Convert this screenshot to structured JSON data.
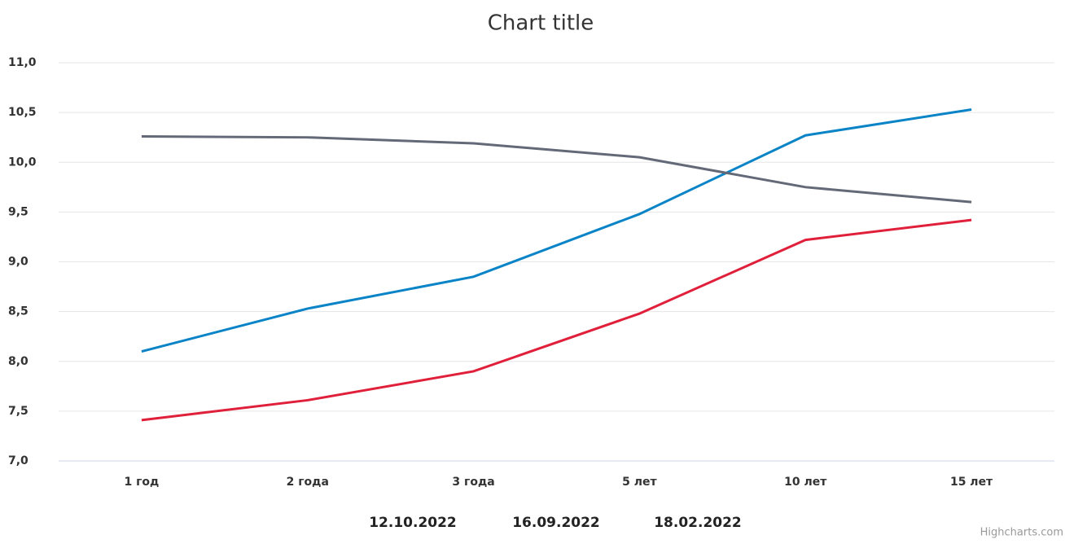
{
  "chart_data": {
    "type": "line",
    "title": "Chart title",
    "categories": [
      "1 год",
      "2 года",
      "3 года",
      "5 лет",
      "10 лет",
      "15 лет"
    ],
    "series": [
      {
        "name": "12.10.2022",
        "color": "#0a84c6",
        "values": [
          8.1,
          8.53,
          8.85,
          9.48,
          10.27,
          10.53
        ]
      },
      {
        "name": "16.09.2022",
        "color": "#e0203a",
        "values": [
          7.41,
          7.61,
          7.9,
          8.48,
          9.22,
          9.42
        ]
      },
      {
        "name": "18.02.2022",
        "color": "#636977",
        "values": [
          10.26,
          10.25,
          10.19,
          10.05,
          9.75,
          9.6
        ]
      }
    ],
    "ylim": [
      7,
      11
    ],
    "yticks": [
      {
        "value": 7,
        "label": "7,0"
      },
      {
        "value": 7.5,
        "label": "7,5"
      },
      {
        "value": 8,
        "label": "8,0"
      },
      {
        "value": 8.5,
        "label": "8,5"
      },
      {
        "value": 9,
        "label": "9,0"
      },
      {
        "value": 9.5,
        "label": "9,5"
      },
      {
        "value": 10,
        "label": "10,0"
      },
      {
        "value": 10.5,
        "label": "10,5"
      },
      {
        "value": 11,
        "label": "11,0"
      }
    ],
    "grid": true,
    "legend": "bottom",
    "credits": "Highcharts.com"
  }
}
